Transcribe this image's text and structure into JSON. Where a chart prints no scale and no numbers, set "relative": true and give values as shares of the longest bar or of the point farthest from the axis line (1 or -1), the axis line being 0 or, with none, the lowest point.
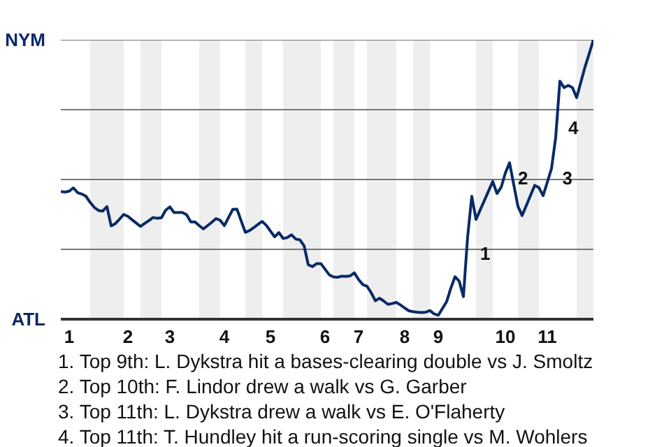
{
  "chart_data": {
    "type": "line",
    "relative": true,
    "categories": [
      null,
      null,
      "1",
      null,
      null,
      null,
      null,
      null,
      null,
      null,
      null,
      null,
      null,
      null,
      null,
      null,
      "2",
      null,
      null,
      null,
      null,
      null,
      null,
      null,
      null,
      null,
      "3",
      null,
      null,
      null,
      null,
      null,
      null,
      null,
      null,
      null,
      null,
      null,
      null,
      "4",
      null,
      null,
      null,
      null,
      null,
      null,
      null,
      null,
      null,
      null,
      "5",
      null,
      null,
      null,
      null,
      null,
      null,
      null,
      null,
      null,
      null,
      null,
      null,
      "6",
      null,
      null,
      null,
      null,
      null,
      null,
      null,
      "7",
      null,
      null,
      null,
      null,
      null,
      null,
      null,
      null,
      null,
      null,
      "8",
      null,
      null,
      null,
      null,
      null,
      null,
      null,
      "9",
      null,
      null,
      null,
      null,
      null,
      null,
      null,
      null,
      null,
      null,
      null,
      null,
      null,
      null,
      null,
      "10",
      null,
      null,
      null,
      null,
      null,
      null,
      null,
      null,
      null,
      "11",
      null,
      null,
      null,
      null,
      null,
      null,
      null,
      null,
      null,
      null,
      null
    ],
    "series": [
      {
        "color": "#0a2a66",
        "values": [
          0.457,
          0.455,
          0.458,
          0.47,
          0.453,
          0.448,
          0.44,
          0.418,
          0.4,
          0.389,
          0.387,
          0.403,
          0.334,
          0.342,
          0.358,
          0.375,
          0.368,
          0.356,
          0.344,
          0.332,
          0.343,
          0.353,
          0.364,
          0.361,
          0.363,
          0.39,
          0.402,
          0.382,
          0.382,
          0.382,
          0.374,
          0.348,
          0.348,
          0.335,
          0.323,
          0.335,
          0.347,
          0.36,
          0.354,
          0.335,
          0.364,
          0.393,
          0.394,
          0.352,
          0.311,
          0.317,
          0.328,
          0.339,
          0.35,
          0.336,
          0.315,
          0.295,
          0.31,
          0.289,
          0.292,
          0.302,
          0.287,
          0.284,
          0.263,
          0.195,
          0.188,
          0.199,
          0.199,
          0.179,
          0.159,
          0.151,
          0.15,
          0.154,
          0.153,
          0.155,
          0.166,
          0.142,
          0.124,
          0.118,
          0.095,
          0.066,
          0.075,
          0.065,
          0.053,
          0.056,
          0.06,
          0.051,
          0.04,
          0.03,
          0.027,
          0.025,
          0.024,
          0.025,
          0.031,
          0.019,
          0.014,
          0.038,
          0.063,
          0.111,
          0.152,
          0.136,
          0.081,
          0.294,
          0.44,
          0.357,
          0.391,
          0.425,
          0.459,
          0.493,
          0.45,
          0.472,
          0.523,
          0.56,
          0.482,
          0.404,
          0.371,
          0.407,
          0.443,
          0.479,
          0.471,
          0.442,
          0.49,
          0.539,
          0.65,
          0.852,
          0.829,
          0.837,
          0.829,
          0.793,
          0.848,
          0.903,
          0.951,
          1.0
        ]
      }
    ],
    "line_style": "solid",
    "ref_lines": [
      {
        "axis": "y",
        "value": 0.25,
        "color": "#777777"
      },
      {
        "axis": "y",
        "value": 0.5,
        "color": "#777777"
      },
      {
        "axis": "y",
        "value": 0.75,
        "color": "#777777"
      },
      {
        "axis": "y",
        "value": 1,
        "color": "#777777"
      }
    ],
    "annotations": [
      "NYM",
      "ATL",
      "1",
      "2",
      "3",
      "4",
      "1. Top 9th: L. Dykstra hit a bases-clearing double vs J. Smoltz",
      "2. Top 10th: F. Lindor drew a walk vs G. Garber",
      "3. Top 11th: L. Dykstra drew a walk vs E. O'Flaherty",
      "4. Top 11th: T. Hundley hit a run-scoring single vs M. Wohlers"
    ]
  }
}
